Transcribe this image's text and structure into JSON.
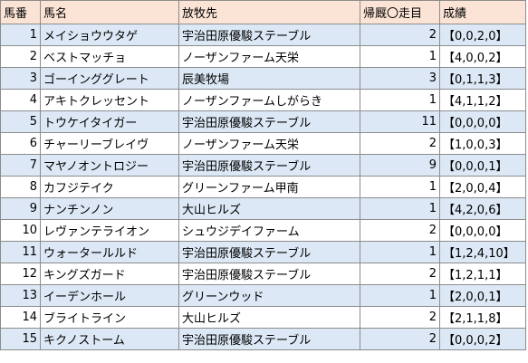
{
  "headers": [
    "馬番",
    "馬名",
    "放牧先",
    "帰厩〇走目",
    "成績"
  ],
  "rows": [
    {
      "no": "1",
      "name": "メイショウウタゲ",
      "farm": "宇治田原優駿ステーブル",
      "runs": "2",
      "result": "【0,0,2,0】"
    },
    {
      "no": "2",
      "name": "ベストマッチョ",
      "farm": "ノーザンファーム天栄",
      "runs": "1",
      "result": "【4,0,0,2】"
    },
    {
      "no": "3",
      "name": "ゴーインググレート",
      "farm": "辰美牧場",
      "runs": "3",
      "result": "【0,1,1,3】"
    },
    {
      "no": "4",
      "name": "アキトクレッセント",
      "farm": "ノーザンファームしがらき",
      "runs": "1",
      "result": "【4,1,1,2】"
    },
    {
      "no": "5",
      "name": "トウケイタイガー",
      "farm": "宇治田原優駿ステーブル",
      "runs": "11",
      "result": "【0,0,0,0】"
    },
    {
      "no": "6",
      "name": "チャーリーブレイヴ",
      "farm": "ノーザンファーム天栄",
      "runs": "2",
      "result": "【1,0,0,3】"
    },
    {
      "no": "7",
      "name": "マヤノオントロジー",
      "farm": "宇治田原優駿ステーブル",
      "runs": "9",
      "result": "【0,0,0,1】"
    },
    {
      "no": "8",
      "name": "カフジテイク",
      "farm": "グリーンファーム甲南",
      "runs": "1",
      "result": "【2,0,0,4】"
    },
    {
      "no": "9",
      "name": "ナンチンノン",
      "farm": "大山ヒルズ",
      "runs": "1",
      "result": "【4,2,0,6】"
    },
    {
      "no": "10",
      "name": "レヴァンテライオン",
      "farm": "シュウジデイファーム",
      "runs": "2",
      "result": "【0,0,0,0】"
    },
    {
      "no": "11",
      "name": "ウォータールルド",
      "farm": "宇治田原優駿ステーブル",
      "runs": "1",
      "result": "【1,2,4,10】"
    },
    {
      "no": "12",
      "name": "キングズガード",
      "farm": "宇治田原優駿ステーブル",
      "runs": "2",
      "result": "【1,2,1,1】"
    },
    {
      "no": "13",
      "name": "イーデンホール",
      "farm": "グリーンウッド",
      "runs": "1",
      "result": "【2,0,0,1】"
    },
    {
      "no": "14",
      "name": "ブライトライン",
      "farm": "大山ヒルズ",
      "runs": "2",
      "result": "【2,1,1,8】"
    },
    {
      "no": "15",
      "name": "キクノストーム",
      "farm": "宇治田原優駿ステーブル",
      "runs": "2",
      "result": "【0,0,0,2】"
    }
  ]
}
